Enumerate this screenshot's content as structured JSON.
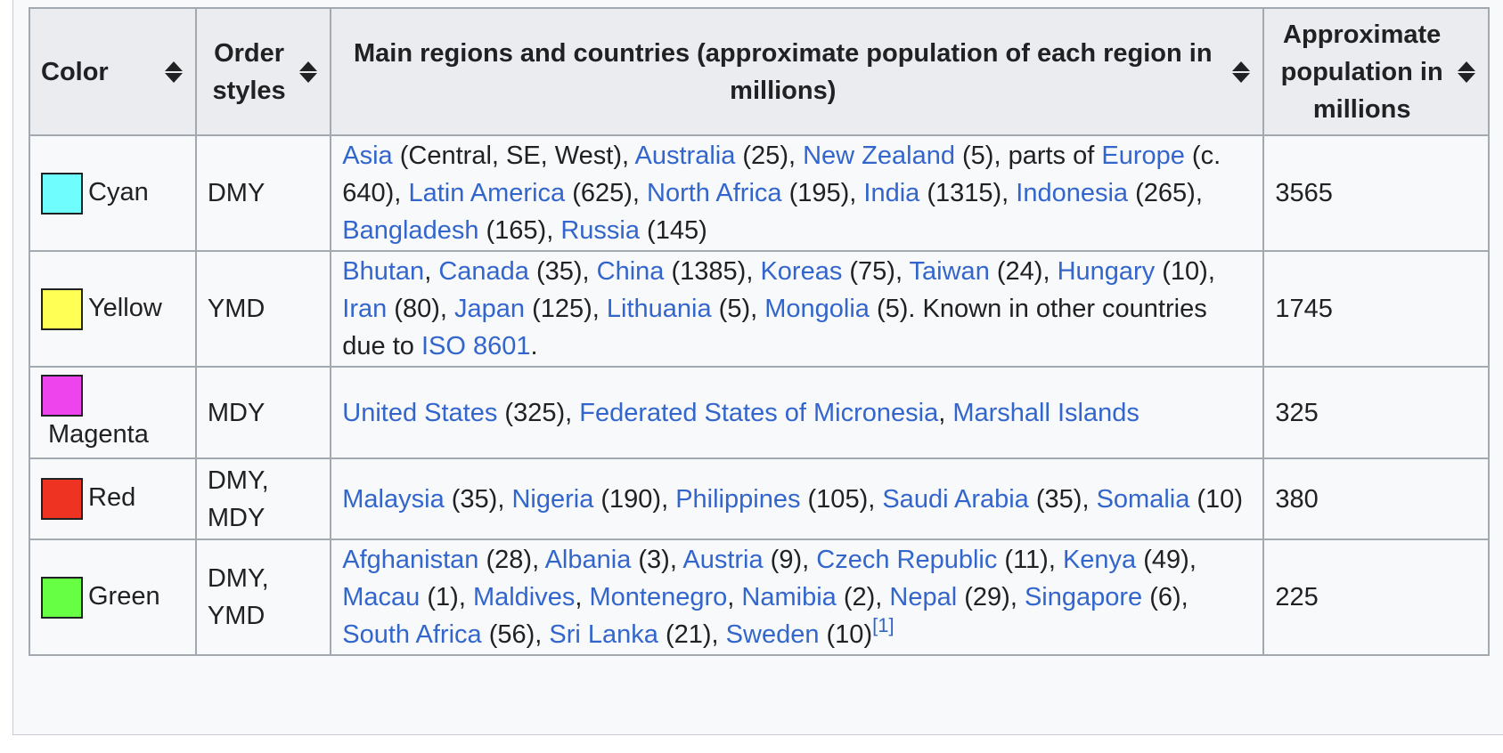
{
  "headers": {
    "color": "Color",
    "order_styles": "Order styles",
    "regions": "Main regions and countries (approximate population of each region in millions)",
    "population": "Approximate population in millions"
  },
  "rows": [
    {
      "color_name": "Cyan",
      "swatch": "#70fdfd",
      "order": "DMY",
      "population": "3565",
      "regions": [
        {
          "t": "Asia",
          "link": true
        },
        {
          "t": " (Central, SE, West), ",
          "link": false
        },
        {
          "t": "Australia",
          "link": true
        },
        {
          "t": " (25), ",
          "link": false
        },
        {
          "t": "New Zealand",
          "link": true
        },
        {
          "t": " (5), parts of ",
          "link": false
        },
        {
          "t": "Europe",
          "link": true
        },
        {
          "t": " (c. 640), ",
          "link": false
        },
        {
          "t": "Latin America",
          "link": true
        },
        {
          "t": " (625), ",
          "link": false
        },
        {
          "t": "North Africa",
          "link": true
        },
        {
          "t": " (195), ",
          "link": false
        },
        {
          "t": "India",
          "link": true
        },
        {
          "t": " (1315), ",
          "link": false
        },
        {
          "t": "Indonesia",
          "link": true
        },
        {
          "t": " (265), ",
          "link": false
        },
        {
          "t": "Bangladesh",
          "link": true
        },
        {
          "t": " (165), ",
          "link": false
        },
        {
          "t": "Russia",
          "link": true
        },
        {
          "t": " (145)",
          "link": false
        }
      ]
    },
    {
      "color_name": "Yellow",
      "swatch": "#ffff55",
      "order": "YMD",
      "population": "1745",
      "regions": [
        {
          "t": "Bhutan",
          "link": true
        },
        {
          "t": ", ",
          "link": false
        },
        {
          "t": "Canada",
          "link": true
        },
        {
          "t": " (35), ",
          "link": false
        },
        {
          "t": "China",
          "link": true
        },
        {
          "t": " (1385), ",
          "link": false
        },
        {
          "t": "Koreas",
          "link": true
        },
        {
          "t": " (75), ",
          "link": false
        },
        {
          "t": "Taiwan",
          "link": true
        },
        {
          "t": " (24), ",
          "link": false
        },
        {
          "t": "Hungary",
          "link": true
        },
        {
          "t": " (10), ",
          "link": false
        },
        {
          "t": "Iran",
          "link": true
        },
        {
          "t": " (80), ",
          "link": false
        },
        {
          "t": "Japan",
          "link": true
        },
        {
          "t": " (125), ",
          "link": false
        },
        {
          "t": "Lithuania",
          "link": true
        },
        {
          "t": " (5), ",
          "link": false
        },
        {
          "t": "Mongolia",
          "link": true
        },
        {
          "t": " (5). Known in other countries due to ",
          "link": false
        },
        {
          "t": "ISO 8601",
          "link": true
        },
        {
          "t": ".",
          "link": false
        }
      ]
    },
    {
      "color_name": "Magenta",
      "swatch": "#ee44ee",
      "order": "MDY",
      "population": "325",
      "regions": [
        {
          "t": "United States",
          "link": true
        },
        {
          "t": " (325), ",
          "link": false
        },
        {
          "t": "Federated States of Micronesia",
          "link": true
        },
        {
          "t": ", ",
          "link": false
        },
        {
          "t": "Marshall Islands",
          "link": true
        }
      ]
    },
    {
      "color_name": "Red",
      "swatch": "#ee3322",
      "order": "DMY, MDY",
      "population": "380",
      "regions": [
        {
          "t": "Malaysia",
          "link": true
        },
        {
          "t": " (35), ",
          "link": false
        },
        {
          "t": "Nigeria",
          "link": true
        },
        {
          "t": " (190), ",
          "link": false
        },
        {
          "t": "Philippines",
          "link": true
        },
        {
          "t": " (105), ",
          "link": false
        },
        {
          "t": "Saudi Arabia",
          "link": true
        },
        {
          "t": " (35), ",
          "link": false
        },
        {
          "t": "Somalia",
          "link": true
        },
        {
          "t": " (10)",
          "link": false
        }
      ]
    },
    {
      "color_name": "Green",
      "swatch": "#66ff44",
      "order": "DMY, YMD",
      "population": "225",
      "footnote": "[1]",
      "regions": [
        {
          "t": "Afghanistan",
          "link": true
        },
        {
          "t": " (28), ",
          "link": false
        },
        {
          "t": "Albania",
          "link": true
        },
        {
          "t": " (3), ",
          "link": false
        },
        {
          "t": "Austria",
          "link": true
        },
        {
          "t": " (9), ",
          "link": false
        },
        {
          "t": "Czech Republic",
          "link": true
        },
        {
          "t": " (11), ",
          "link": false
        },
        {
          "t": "Kenya",
          "link": true
        },
        {
          "t": " (49), ",
          "link": false
        },
        {
          "t": "Macau",
          "link": true
        },
        {
          "t": " (1), ",
          "link": false
        },
        {
          "t": "Maldives",
          "link": true
        },
        {
          "t": ", ",
          "link": false
        },
        {
          "t": "Montenegro",
          "link": true
        },
        {
          "t": ", ",
          "link": false
        },
        {
          "t": "Namibia",
          "link": true
        },
        {
          "t": " (2), ",
          "link": false
        },
        {
          "t": "Nepal",
          "link": true
        },
        {
          "t": " (29), ",
          "link": false
        },
        {
          "t": "Singapore",
          "link": true
        },
        {
          "t": " (6), ",
          "link": false
        },
        {
          "t": "South Africa",
          "link": true
        },
        {
          "t": " (56), ",
          "link": false
        },
        {
          "t": "Sri Lanka",
          "link": true
        },
        {
          "t": " (21), ",
          "link": false
        },
        {
          "t": "Sweden",
          "link": true
        },
        {
          "t": " (10)",
          "link": false
        }
      ]
    }
  ]
}
